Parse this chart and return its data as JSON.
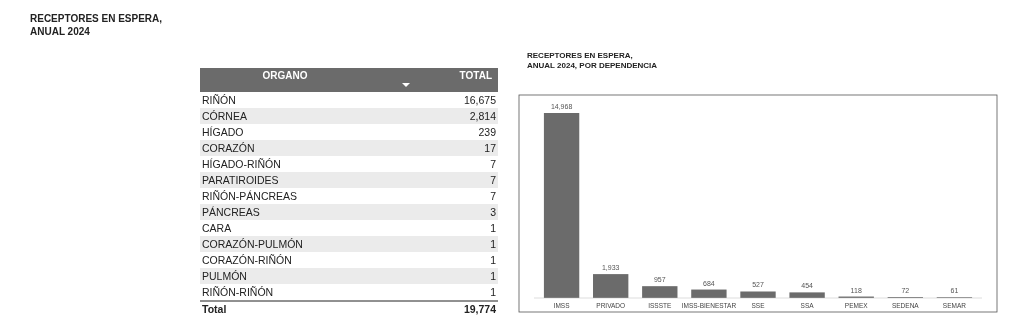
{
  "chart_data": [
    {
      "type": "other",
      "title": "RECEPTORES EN ESPERA,\nANUAL 2024",
      "xlabel": "ORGANO",
      "ylabel": "TOTAL",
      "categories": [
        "RIÑÓN",
        "CÓRNEA",
        "HÍGADO",
        "CORAZÓN",
        "HÍGADO-RIÑÓN",
        "PARATIROIDES",
        "RIÑÓN-PÁNCREAS",
        "PÁNCREAS",
        "CARA",
        "CORAZÓN-PULMÓN",
        "CORAZÓN-RIÑÓN",
        "PULMÓN",
        "RIÑÓN-RIÑÓN"
      ],
      "values": [
        16675,
        2814,
        239,
        17,
        7,
        7,
        7,
        3,
        1,
        1,
        1,
        1,
        1
      ],
      "value_labels": [
        "16,675",
        "2,814",
        "239",
        "17",
        "7",
        "7",
        "7",
        "3",
        "1",
        "1",
        "1",
        "1",
        "1"
      ],
      "annotations": [
        "Total",
        "19,774"
      ]
    },
    {
      "type": "bar",
      "title": "RECEPTORES EN ESPERA,\nANUAL 2024, POR DEPENDENCIA",
      "categories": [
        "IMSS",
        "PRIVADO",
        "ISSSTE",
        "IMSS-BIENESTAR",
        "SSE",
        "SSA",
        "PEMEX",
        "SEDENA",
        "SEMAR"
      ],
      "values": [
        14968,
        1933,
        957,
        684,
        527,
        454,
        118,
        72,
        61
      ],
      "value_labels": [
        "14,968",
        "1,933",
        "957",
        "684",
        "527",
        "454",
        "118",
        "72",
        "61"
      ],
      "color": "#6b6b6b"
    }
  ]
}
